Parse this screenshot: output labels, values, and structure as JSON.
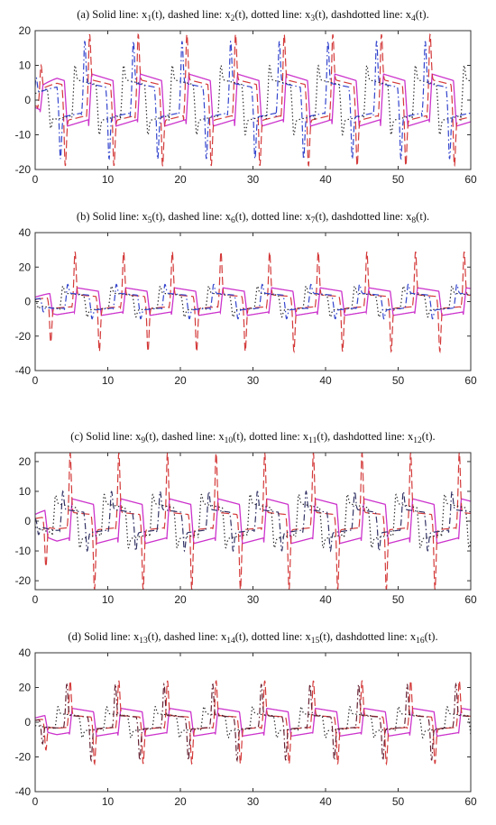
{
  "chart_data": [
    {
      "type": "line",
      "title_prefix": "(a) Solid line: x",
      "title_parts": [
        "1",
        "(t), dashed line: x",
        "2",
        "(t), dotted line: x",
        "3",
        "(t), dashdotted line: x",
        "4",
        "(t)."
      ],
      "xlim": [
        0,
        60
      ],
      "ylim": [
        -20,
        20
      ],
      "xticks": [
        0,
        10,
        20,
        30,
        40,
        50,
        60
      ],
      "yticks": [
        -20,
        -10,
        0,
        10,
        20
      ],
      "period": 6.7,
      "phase": 0.9,
      "series": [
        {
          "style": "solid",
          "color": "#cc33cc",
          "amp": 7.5,
          "spike": 0,
          "shift": 0
        },
        {
          "style": "dashed",
          "color": "#d43a3a",
          "amp": 6,
          "spike": 13,
          "shift": 0.05
        },
        {
          "style": "dotted",
          "color": "#222222",
          "amp": 6,
          "spike": 4,
          "shift": 0.35
        },
        {
          "style": "dashdot",
          "color": "#3344cc",
          "amp": 5,
          "spike": 12,
          "shift": 0.15
        }
      ]
    },
    {
      "type": "line",
      "title_prefix": "(b) Solid line: x",
      "title_parts": [
        "5",
        "(t), dashed line: x",
        "6",
        "(t), dotted line: x",
        "7",
        "(t), dashdotted line: x",
        "8",
        "(t)."
      ],
      "xlim": [
        0,
        60
      ],
      "ylim": [
        -40,
        40
      ],
      "xticks": [
        0,
        10,
        20,
        30,
        40,
        50,
        60
      ],
      "yticks": [
        -40,
        -20,
        0,
        20,
        40
      ],
      "period": 6.7,
      "phase": 0.2,
      "series": [
        {
          "style": "solid",
          "color": "#cc33cc",
          "amp": 8,
          "spike": 0,
          "shift": 0
        },
        {
          "style": "dashed",
          "color": "#d43a3a",
          "amp": 4,
          "spike": 25,
          "shift": 0.05
        },
        {
          "style": "dotted",
          "color": "#222222",
          "amp": 5,
          "spike": 4,
          "shift": 0.3
        },
        {
          "style": "dashdot",
          "color": "#3344cc",
          "amp": 5,
          "spike": 5,
          "shift": 0.2
        }
      ]
    },
    {
      "type": "line",
      "title_prefix": "(c) Solid line: x",
      "title_parts": [
        "9",
        "(t), dashed line: x",
        "10",
        "(t), dotted line: x",
        "11",
        "(t), dashdotted line: x",
        "12",
        "(t)."
      ],
      "xlim": [
        0,
        60
      ],
      "ylim": [
        -23,
        23
      ],
      "xticks": [
        0,
        10,
        20,
        30,
        40,
        50,
        60
      ],
      "yticks": [
        -20,
        -10,
        0,
        10,
        20
      ],
      "period": 6.7,
      "phase": 0.3,
      "series": [
        {
          "style": "solid",
          "color": "#cc33cc",
          "amp": 7.5,
          "spike": 0,
          "shift": 0
        },
        {
          "style": "dashed",
          "color": "#d43a3a",
          "amp": 3,
          "spike": 20,
          "shift": 0.05
        },
        {
          "style": "dotted",
          "color": "#222222",
          "amp": 6,
          "spike": 3,
          "shift": 0.35
        },
        {
          "style": "dashdot",
          "color": "#333366",
          "amp": 4,
          "spike": 6,
          "shift": 0.2
        }
      ]
    },
    {
      "type": "line",
      "title_prefix": "(d) Solid line: x",
      "title_parts": [
        "13",
        "(t), dashed line: x",
        "14",
        "(t), dotted line: x",
        "15",
        "(t), dashdotted line: x",
        "16",
        "(t)."
      ],
      "xlim": [
        0,
        60
      ],
      "ylim": [
        -40,
        40
      ],
      "xticks": [
        0,
        10,
        20,
        30,
        40,
        50,
        60
      ],
      "yticks": [
        -40,
        -20,
        0,
        20,
        40
      ],
      "period": 6.7,
      "phase": 0.3,
      "series": [
        {
          "style": "solid",
          "color": "#cc33cc",
          "amp": 8,
          "spike": 0,
          "shift": 0
        },
        {
          "style": "dashed",
          "color": "#d43a3a",
          "amp": 4,
          "spike": 20,
          "shift": 0.05
        },
        {
          "style": "dotted",
          "color": "#222222",
          "amp": 5,
          "spike": 4,
          "shift": 0.3
        },
        {
          "style": "dashdot",
          "color": "#662233",
          "amp": 4,
          "spike": 18,
          "shift": 0.12
        }
      ]
    }
  ]
}
